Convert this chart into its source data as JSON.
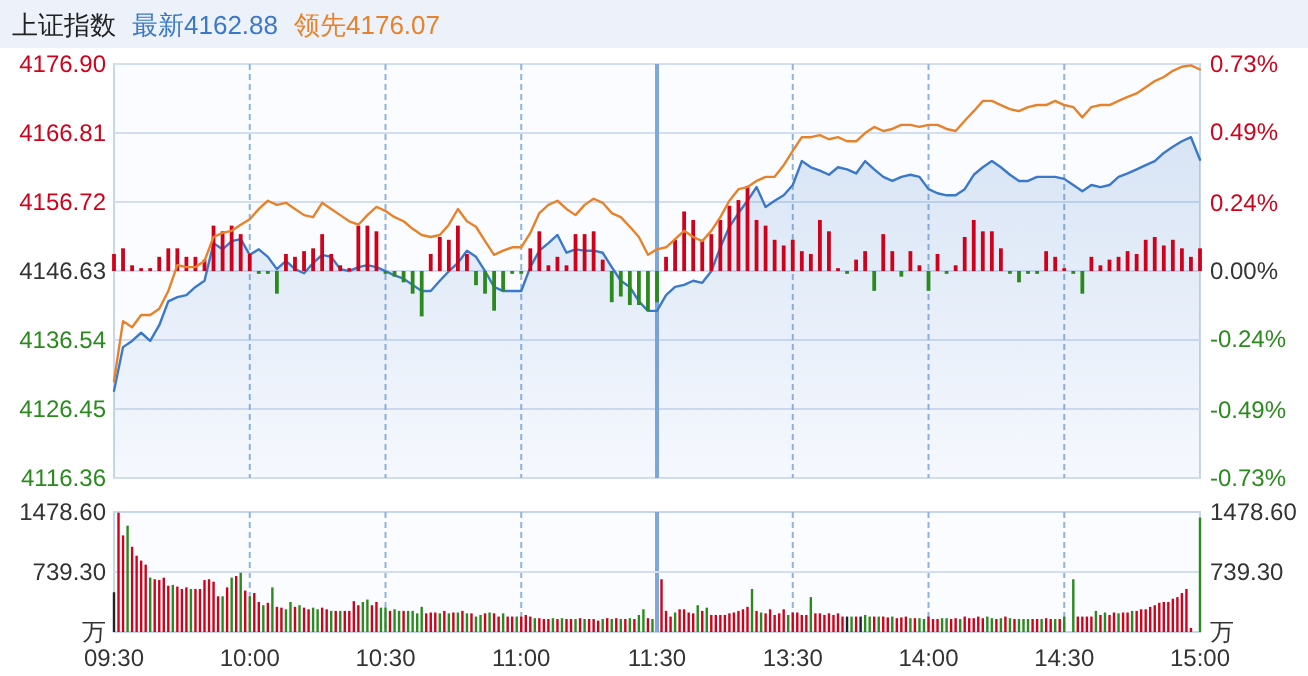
{
  "chart_data": [
    {
      "type": "line",
      "title": "上证指数",
      "legend": "top left",
      "tick_labels": "y",
      "grid": true,
      "categories": [
        "09:30",
        null,
        null,
        null,
        null,
        null,
        null,
        null,
        null,
        null,
        null,
        null,
        null,
        null,
        null,
        "10:00",
        null,
        null,
        null,
        null,
        null,
        null,
        null,
        null,
        null,
        null,
        null,
        null,
        null,
        null,
        "10:30",
        null,
        null,
        null,
        null,
        null,
        null,
        null,
        null,
        null,
        null,
        null,
        null,
        null,
        null,
        "11:00",
        null,
        null,
        null,
        null,
        null,
        null,
        null,
        null,
        null,
        null,
        null,
        null,
        null,
        null,
        "11:30",
        null,
        null,
        null,
        null,
        null,
        null,
        null,
        null,
        null,
        null,
        null,
        null,
        null,
        null,
        "13:30",
        null,
        null,
        null,
        null,
        null,
        null,
        null,
        null,
        null,
        null,
        null,
        null,
        null,
        null,
        "14:00",
        null,
        null,
        null,
        null,
        null,
        null,
        null,
        null,
        null,
        null,
        null,
        null,
        null,
        null,
        "14:30",
        null,
        null,
        null,
        null,
        null,
        null,
        null,
        null,
        null,
        null,
        null,
        null,
        null,
        null,
        "15:00"
      ],
      "ylim": [
        4116.36,
        4176.9
      ],
      "yticks": [
        4116.36,
        4126.45,
        4136.54,
        4146.63,
        4156.72,
        4166.81,
        {
          "value": 4176.9,
          "label": "4176.90"
        }
      ],
      "y2lim": [
        -0.73,
        0.73
      ],
      "y2ticks": [
        {
          "value": -0.73,
          "label": "-0.73%"
        },
        {
          "value": -0.49,
          "label": "-0.49%"
        },
        {
          "value": -0.24,
          "label": "-0.24%"
        },
        {
          "value": 0,
          "label": "0.00%"
        },
        {
          "value": 0.24,
          "label": "0.24%"
        },
        {
          "value": 0.49,
          "label": "0.49%"
        },
        {
          "value": 0.73,
          "label": "0.73%"
        }
      ],
      "ref_lines": [
        {
          "axis": "x",
          "value": "11:30",
          "color": "#7ea7db"
        }
      ],
      "series": [
        {
          "type": "area",
          "name": "最新4162.88",
          "color": "#3a78c9",
          "values": [
            4129.1,
            4135.5,
            4136.4,
            4137.6,
            4136.4,
            4138.7,
            4142.2,
            4142.8,
            4143.1,
            4144.3,
            4145.2,
            4150.7,
            4149.8,
            4151.0,
            4151.3,
            4149.0,
            4149.8,
            4148.7,
            4146.9,
            4148.1,
            4146.9,
            4146.3,
            4147.8,
            4149.0,
            4148.7,
            4146.9,
            4146.6,
            4147.2,
            4147.5,
            4147.2,
            4146.6,
            4146.0,
            4145.5,
            4144.6,
            4143.7,
            4143.7,
            4145.2,
            4146.6,
            4147.8,
            4149.6,
            4148.7,
            4146.6,
            4144.3,
            4143.7,
            4143.7,
            4143.7,
            4147.2,
            4149.6,
            4150.7,
            4151.9,
            4149.3,
            4149.8,
            4149.6,
            4149.6,
            4149.3,
            4147.2,
            4145.2,
            4144.3,
            4142.2,
            4140.8,
            4140.8,
            4143.1,
            4144.3,
            4144.6,
            4145.2,
            4144.9,
            4146.6,
            4150.1,
            4153.1,
            4155.1,
            4156.9,
            4158.9,
            4156.0,
            4156.9,
            4157.7,
            4159.2,
            4162.7,
            4161.8,
            4161.3,
            4160.7,
            4161.8,
            4161.5,
            4160.9,
            4162.7,
            4161.5,
            4160.4,
            4159.8,
            4160.4,
            4160.7,
            4160.4,
            4158.6,
            4158.0,
            4157.7,
            4157.7,
            4158.6,
            4160.7,
            4161.8,
            4162.7,
            4161.8,
            4160.7,
            4159.8,
            4159.8,
            4160.4,
            4160.4,
            4160.4,
            4160.1,
            4159.2,
            4158.3,
            4159.2,
            4158.9,
            4159.2,
            4160.4,
            4160.9,
            4161.5,
            4162.1,
            4162.7,
            4163.9,
            4164.8,
            4165.6,
            4166.2,
            4162.9
          ]
        },
        {
          "name": "领先4176.07",
          "color": "#e8822a",
          "values": [
            4130.5,
            4139.3,
            4138.4,
            4140.2,
            4140.2,
            4141.1,
            4143.7,
            4147.5,
            4147.2,
            4147.2,
            4148.1,
            4151.6,
            4152.2,
            4152.5,
            4153.4,
            4154.2,
            4155.7,
            4156.9,
            4156.3,
            4156.6,
            4155.7,
            4154.8,
            4154.5,
            4156.6,
            4155.7,
            4154.8,
            4153.9,
            4153.4,
            4154.8,
            4156.0,
            4155.4,
            4154.5,
            4153.9,
            4152.8,
            4151.9,
            4151.6,
            4151.9,
            4153.4,
            4155.7,
            4153.9,
            4153.1,
            4151.0,
            4149.0,
            4149.6,
            4150.1,
            4150.1,
            4152.2,
            4155.1,
            4156.3,
            4156.9,
            4155.7,
            4154.8,
            4156.3,
            4157.2,
            4156.6,
            4155.1,
            4154.5,
            4153.1,
            4151.6,
            4149.0,
            4149.8,
            4150.1,
            4151.3,
            4152.5,
            4151.6,
            4151.0,
            4152.5,
            4154.5,
            4156.9,
            4158.6,
            4158.9,
            4159.8,
            4160.4,
            4160.4,
            4162.1,
            4164.2,
            4166.2,
            4166.2,
            4166.5,
            4165.9,
            4166.2,
            4165.6,
            4165.6,
            4166.8,
            4167.7,
            4167.1,
            4167.4,
            4168.0,
            4168.0,
            4167.7,
            4168.0,
            4168.0,
            4167.4,
            4167.1,
            4168.6,
            4170.0,
            4171.5,
            4171.5,
            4170.9,
            4170.3,
            4170.0,
            4170.6,
            4170.9,
            4170.9,
            4171.5,
            4170.9,
            4170.6,
            4169.1,
            4170.6,
            4170.9,
            4170.9,
            4171.5,
            4172.1,
            4172.6,
            4173.5,
            4174.4,
            4175.0,
            4175.9,
            4176.5,
            4176.7,
            4176.1
          ]
        },
        {
          "type": "bar",
          "axis": "y2",
          "values": [
            0.06,
            0.08,
            0.02,
            0.01,
            0.01,
            0.05,
            0.08,
            0.08,
            0.05,
            0.05,
            0.04,
            0.16,
            0.14,
            0.16,
            0.13,
            0.06,
            -0.01,
            -0.01,
            -0.08,
            0.06,
            0.05,
            0.07,
            0.08,
            0.13,
            0.06,
            0.02,
            0.01,
            0.16,
            0.16,
            0.14,
            -0.01,
            -0.02,
            -0.04,
            -0.08,
            -0.16,
            0.06,
            0.12,
            0.11,
            0.16,
            0.06,
            -0.05,
            -0.08,
            -0.14,
            -0.07,
            -0.01,
            -0.01,
            0.08,
            0.14,
            0.02,
            0.05,
            0.02,
            0.13,
            0.13,
            0.14,
            0.04,
            -0.11,
            -0.09,
            -0.12,
            -0.12,
            -0.14,
            -0.11,
            0.05,
            0.11,
            0.21,
            0.18,
            0.11,
            0.13,
            0.18,
            0.23,
            0.25,
            0.3,
            0.18,
            0.16,
            0.11,
            0.09,
            0.11,
            0.07,
            0.06,
            0.18,
            0.14,
            0.01,
            -0.01,
            0.04,
            0.07,
            -0.07,
            0.13,
            0.07,
            -0.02,
            0.07,
            0.02,
            -0.07,
            0.06,
            -0.01,
            0.02,
            0.12,
            0.18,
            0.14,
            0.14,
            0.08,
            -0.01,
            -0.04,
            -0.01,
            -0.01,
            0.07,
            0.05,
            0.01,
            -0.01,
            -0.08,
            0.05,
            0.02,
            0.04,
            0.05,
            0.07,
            0.06,
            0.11,
            0.12,
            0.09,
            0.11,
            0.08,
            0.05,
            0.08
          ],
          "colors": [
            "#d0021b",
            "#d0021b",
            "#d0021b",
            "#d0021b",
            "#d0021b",
            "#d0021b",
            "#d0021b",
            "#d0021b",
            "#d0021b",
            "#d0021b",
            "#d0021b",
            "#d0021b",
            "#d0021b",
            "#d0021b",
            "#d0021b",
            "#d0021b",
            "#2b8a1e",
            "#2b8a1e",
            "#2b8a1e",
            "#d0021b",
            "#d0021b",
            "#d0021b",
            "#d0021b",
            "#d0021b",
            "#d0021b",
            "#d0021b",
            "#d0021b",
            "#d0021b",
            "#d0021b",
            "#d0021b",
            "#2b8a1e",
            "#2b8a1e",
            "#2b8a1e",
            "#2b8a1e",
            "#2b8a1e",
            "#d0021b",
            "#d0021b",
            "#d0021b",
            "#d0021b",
            "#d0021b",
            "#2b8a1e",
            "#2b8a1e",
            "#2b8a1e",
            "#2b8a1e",
            "#2b8a1e",
            "#2b8a1e",
            "#d0021b",
            "#d0021b",
            "#d0021b",
            "#d0021b",
            "#d0021b",
            "#d0021b",
            "#d0021b",
            "#d0021b",
            "#d0021b",
            "#2b8a1e",
            "#2b8a1e",
            "#2b8a1e",
            "#2b8a1e",
            "#2b8a1e",
            "#2b8a1e",
            "#d0021b",
            "#d0021b",
            "#d0021b",
            "#d0021b",
            "#d0021b",
            "#d0021b",
            "#d0021b",
            "#d0021b",
            "#d0021b",
            "#d0021b",
            "#d0021b",
            "#d0021b",
            "#d0021b",
            "#d0021b",
            "#d0021b",
            "#d0021b",
            "#d0021b",
            "#d0021b",
            "#d0021b",
            "#d0021b",
            "#2b8a1e",
            "#d0021b",
            "#d0021b",
            "#2b8a1e",
            "#d0021b",
            "#d0021b",
            "#2b8a1e",
            "#d0021b",
            "#d0021b",
            "#2b8a1e",
            "#d0021b",
            "#2b8a1e",
            "#d0021b",
            "#d0021b",
            "#d0021b",
            "#d0021b",
            "#d0021b",
            "#d0021b",
            "#2b8a1e",
            "#2b8a1e",
            "#2b8a1e",
            "#2b8a1e",
            "#d0021b",
            "#d0021b",
            "#d0021b",
            "#2b8a1e",
            "#2b8a1e",
            "#d0021b",
            "#d0021b",
            "#d0021b",
            "#d0021b",
            "#d0021b",
            "#d0021b",
            "#d0021b",
            "#d0021b",
            "#d0021b",
            "#d0021b",
            "#d0021b",
            "#d0021b",
            "#d0021b"
          ]
        }
      ]
    },
    {
      "type": "bar",
      "grid": "x",
      "categories": [
        "09:30",
        null,
        null,
        null,
        null,
        null,
        null,
        null,
        null,
        null,
        null,
        null,
        null,
        null,
        null,
        null,
        null,
        null,
        null,
        null,
        null,
        null,
        null,
        null,
        null,
        null,
        null,
        null,
        null,
        null,
        "10:00",
        null,
        null,
        null,
        null,
        null,
        null,
        null,
        null,
        null,
        null,
        null,
        null,
        null,
        null,
        null,
        null,
        null,
        null,
        null,
        null,
        null,
        null,
        null,
        null,
        null,
        null,
        null,
        null,
        null,
        "10:30",
        null,
        null,
        null,
        null,
        null,
        null,
        null,
        null,
        null,
        null,
        null,
        null,
        null,
        null,
        null,
        null,
        null,
        null,
        null,
        null,
        null,
        null,
        null,
        null,
        null,
        null,
        null,
        null,
        null,
        "11:00",
        null,
        null,
        null,
        null,
        null,
        null,
        null,
        null,
        null,
        null,
        null,
        null,
        null,
        null,
        null,
        null,
        null,
        null,
        null,
        null,
        null,
        null,
        null,
        null,
        null,
        null,
        null,
        null,
        null,
        "11:30",
        null,
        null,
        null,
        null,
        null,
        null,
        null,
        null,
        null,
        null,
        null,
        null,
        null,
        null,
        null,
        null,
        null,
        null,
        null,
        null,
        null,
        null,
        null,
        null,
        null,
        null,
        null,
        null,
        null,
        "13:30",
        null,
        null,
        null,
        null,
        null,
        null,
        null,
        null,
        null,
        null,
        null,
        null,
        null,
        null,
        null,
        null,
        null,
        null,
        null,
        null,
        null,
        null,
        null,
        null,
        null,
        null,
        null,
        null,
        null,
        "14:00",
        null,
        null,
        null,
        null,
        null,
        null,
        null,
        null,
        null,
        null,
        null,
        null,
        null,
        null,
        null,
        null,
        null,
        null,
        null,
        null,
        null,
        null,
        null,
        null,
        null,
        null,
        null,
        null,
        null,
        "14:30",
        null,
        null,
        null,
        null,
        null,
        null,
        null,
        null,
        null,
        null,
        null,
        null,
        null,
        null,
        null,
        null,
        null,
        null,
        null,
        null,
        null,
        null,
        null,
        null,
        null,
        null,
        null,
        null,
        null,
        "15:00"
      ],
      "ylim": [
        0,
        1478.6
      ],
      "yticks": [
        {
          "value": 0,
          "label": "万"
        },
        {
          "value": 739.3,
          "label": "739.30"
        },
        {
          "value": 1478.6,
          "label": "1478.60"
        }
      ],
      "y2lim": [
        0,
        1478.6
      ],
      "y2ticks": [
        {
          "value": 0,
          "label": "万"
        },
        {
          "value": 739.3,
          "label": "739.30"
        },
        {
          "value": 1478.6,
          "label": "1478.60"
        }
      ],
      "ref_lines": [
        {
          "axis": "x",
          "value": "11:30",
          "color": "#7ea7db"
        },
        {
          "axis": "y",
          "value": 739.3,
          "color": "#d3dff0"
        }
      ],
      "values": [
        490,
        1470,
        1190,
        1310,
        1050,
        940,
        880,
        830,
        670,
        650,
        640,
        670,
        570,
        580,
        560,
        530,
        550,
        530,
        530,
        530,
        640,
        650,
        620,
        440,
        440,
        550,
        670,
        690,
        730,
        510,
        440,
        480,
        370,
        330,
        360,
        550,
        310,
        300,
        280,
        370,
        310,
        330,
        300,
        280,
        300,
        280,
        300,
        280,
        260,
        260,
        260,
        260,
        260,
        380,
        330,
        370,
        400,
        330,
        370,
        300,
        300,
        260,
        280,
        260,
        260,
        260,
        260,
        230,
        310,
        230,
        240,
        240,
        230,
        260,
        230,
        240,
        240,
        260,
        230,
        230,
        190,
        210,
        230,
        240,
        230,
        190,
        230,
        190,
        190,
        190,
        190,
        210,
        190,
        170,
        170,
        160,
        160,
        170,
        160,
        170,
        160,
        160,
        160,
        170,
        160,
        160,
        160,
        140,
        160,
        170,
        160,
        170,
        160,
        160,
        170,
        160,
        210,
        280,
        170,
        160,
        null,
        650,
        260,
        190,
        240,
        280,
        280,
        240,
        230,
        330,
        260,
        300,
        210,
        210,
        210,
        210,
        230,
        240,
        260,
        280,
        310,
        530,
        260,
        240,
        230,
        280,
        210,
        230,
        280,
        210,
        240,
        240,
        210,
        210,
        430,
        230,
        230,
        210,
        230,
        210,
        230,
        190,
        190,
        190,
        190,
        190,
        210,
        190,
        190,
        190,
        190,
        180,
        190,
        170,
        180,
        190,
        170,
        170,
        170,
        160,
        190,
        160,
        160,
        170,
        170,
        160,
        170,
        160,
        190,
        170,
        170,
        190,
        170,
        190,
        170,
        160,
        170,
        190,
        170,
        160,
        160,
        160,
        160,
        160,
        160,
        160,
        170,
        160,
        160,
        160,
        190,
        null,
        650,
        190,
        190,
        190,
        190,
        260,
        210,
        240,
        210,
        240,
        230,
        240,
        240,
        260,
        260,
        280,
        280,
        310,
        330,
        360,
        370,
        370,
        410,
        430,
        480,
        530,
        50,
        null,
        1410
      ],
      "colors": [
        "#222222",
        "#d0021b",
        "#d0021b",
        "#2b8a1e",
        "#d0021b",
        "#d0021b",
        "#d0021b",
        "#d0021b",
        "#2b8a1e",
        "#d0021b",
        "#d0021b",
        "#d0021b",
        "#d0021b",
        "#2b8a1e",
        "#d0021b",
        "#d0021b",
        "#d0021b",
        "#2b8a1e",
        "#d0021b",
        "#d0021b",
        "#d0021b",
        "#d0021b",
        "#d0021b",
        "#d0021b",
        "#2b8a1e",
        "#d0021b",
        "#2b8a1e",
        "#d0021b",
        "#2b8a1e",
        "#d0021b",
        "#2b8a1e",
        "#d0021b",
        "#d0021b",
        "#2b8a1e",
        "#d0021b",
        "#2b8a1e",
        "#d0021b",
        "#d0021b",
        "#2b8a1e",
        "#2b8a1e",
        "#d0021b",
        "#2b8a1e",
        "#d0021b",
        "#d0021b",
        "#2b8a1e",
        "#2b8a1e",
        "#d0021b",
        "#d0021b",
        "#2b8a1e",
        "#d0021b",
        "#2b8a1e",
        "#d0021b",
        "#d0021b",
        "#d0021b",
        "#d0021b",
        "#2b8a1e",
        "#2b8a1e",
        "#d0021b",
        "#d0021b",
        "#2b8a1e",
        "#2b8a1e",
        "#d0021b",
        "#2b8a1e",
        "#2b8a1e",
        "#d0021b",
        "#2b8a1e",
        "#2b8a1e",
        "#2b8a1e",
        "#2b8a1e",
        "#d0021b",
        "#d0021b",
        "#d0021b",
        "#2b8a1e",
        "#d0021b",
        "#2b8a1e",
        "#d0021b",
        "#2b8a1e",
        "#d0021b",
        "#2b8a1e",
        "#d0021b",
        "#2b8a1e",
        "#2b8a1e",
        "#d0021b",
        "#2b8a1e",
        "#d0021b",
        "#d0021b",
        "#2b8a1e",
        "#d0021b",
        "#d0021b",
        "#2b8a1e",
        "#d0021b",
        "#d0021b",
        "#d0021b",
        "#2b8a1e",
        "#d0021b",
        "#d0021b",
        "#d0021b",
        "#2b8a1e",
        "#d0021b",
        "#2b8a1e",
        "#d0021b",
        "#d0021b",
        "#2b8a1e",
        "#d0021b",
        "#2b8a1e",
        "#d0021b",
        "#d0021b",
        "#d0021b",
        "#2b8a1e",
        "#d0021b",
        "#2b8a1e",
        "#d0021b",
        "#2b8a1e",
        "#d0021b",
        "#2b8a1e",
        "#d0021b",
        "#2b8a1e",
        "#2b8a1e",
        "#d0021b",
        "#2b8a1e",
        null,
        "#d0021b",
        "#d0021b",
        "#d0021b",
        "#2b8a1e",
        "#d0021b",
        "#d0021b",
        "#d0021b",
        "#d0021b",
        "#2b8a1e",
        "#d0021b",
        "#2b8a1e",
        "#d0021b",
        "#d0021b",
        "#d0021b",
        "#d0021b",
        "#d0021b",
        "#d0021b",
        "#d0021b",
        "#d0021b",
        "#d0021b",
        "#2b8a1e",
        "#d0021b",
        "#2b8a1e",
        "#d0021b",
        "#d0021b",
        "#d0021b",
        "#d0021b",
        "#d0021b",
        "#2b8a1e",
        "#d0021b",
        "#d0021b",
        "#d0021b",
        "#d0021b",
        "#2b8a1e",
        "#d0021b",
        "#d0021b",
        "#d0021b",
        "#d0021b",
        "#d0021b",
        "#d0021b",
        "#d0021b",
        "#222222",
        "#2b8a1e",
        "#d0021b",
        "#222222",
        "#2b8a1e",
        "#2b8a1e",
        "#d0021b",
        "#2b8a1e",
        "#d0021b",
        "#d0021b",
        "#2b8a1e",
        "#d0021b",
        "#d0021b",
        "#d0021b",
        "#2b8a1e",
        "#d0021b",
        "#2b8a1e",
        "#2b8a1e",
        "#d0021b",
        "#d0021b",
        "#d0021b",
        "#2b8a1e",
        "#2b8a1e",
        "#d0021b",
        "#d0021b",
        "#2b8a1e",
        "#d0021b",
        "#d0021b",
        "#d0021b",
        "#d0021b",
        "#d0021b",
        "#2b8a1e",
        "#2b8a1e",
        "#d0021b",
        "#2b8a1e",
        "#d0021b",
        "#2b8a1e",
        "#d0021b",
        "#2b8a1e",
        "#2b8a1e",
        "#2b8a1e",
        "#d0021b",
        "#d0021b",
        "#2b8a1e",
        "#d0021b",
        "#d0021b",
        "#2b8a1e",
        "#d0021b",
        "#2b8a1e",
        null,
        "#2b8a1e",
        "#d0021b",
        "#d0021b",
        "#d0021b",
        "#d0021b",
        "#2b8a1e",
        "#d0021b",
        "#2b8a1e",
        "#d0021b",
        "#d0021b",
        "#2b8a1e",
        "#d0021b",
        "#d0021b",
        "#2b8a1e",
        "#d0021b",
        "#d0021b",
        "#d0021b",
        "#d0021b",
        "#d0021b",
        "#d0021b",
        "#d0021b",
        "#d0021b",
        "#d0021b",
        "#d0021b",
        "#d0021b",
        "#d0021b",
        "#d0021b",
        null,
        "#2b8a1e"
      ]
    }
  ]
}
